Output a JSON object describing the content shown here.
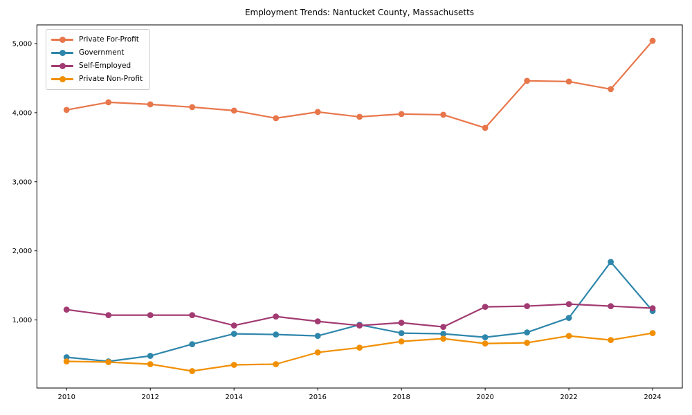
{
  "title": "Employment Trends: Nantucket County, Massachusetts",
  "chart_data": {
    "type": "line",
    "title": "Employment Trends: Nantucket County, Massachusetts",
    "xlabel": "",
    "ylabel": "",
    "grid": false,
    "legend_position": "upper-left",
    "x": [
      2010,
      2011,
      2012,
      2013,
      2014,
      2015,
      2016,
      2017,
      2018,
      2019,
      2020,
      2021,
      2022,
      2023,
      2024
    ],
    "series": [
      {
        "name": "Private For-Profit",
        "color": "#E8764B",
        "values": [
          4040,
          4150,
          4120,
          4080,
          4030,
          3920,
          4010,
          3940,
          3980,
          3970,
          3780,
          4460,
          4450,
          4340,
          5040
        ]
      },
      {
        "name": "Government",
        "color": "#2E86AB",
        "values": [
          460,
          400,
          480,
          650,
          800,
          790,
          770,
          930,
          810,
          800,
          750,
          820,
          1030,
          1840,
          1130
        ]
      },
      {
        "name": "Self-Employed",
        "color": "#A23B72",
        "values": [
          1150,
          1070,
          1070,
          1070,
          920,
          1050,
          980,
          920,
          960,
          900,
          1190,
          1200,
          1230,
          1200,
          1170
        ]
      },
      {
        "name": "Private Non-Profit",
        "color": "#F18F01",
        "values": [
          400,
          390,
          360,
          260,
          350,
          360,
          530,
          600,
          690,
          730,
          660,
          670,
          770,
          710,
          810
        ]
      }
    ],
    "xticks": [
      2010,
      2012,
      2014,
      2016,
      2018,
      2020,
      2022,
      2024
    ],
    "xtick_labels": [
      "2010",
      "2012",
      "2014",
      "2016",
      "2018",
      "2020",
      "2022",
      "2024"
    ],
    "yticks": [
      1000,
      2000,
      3000,
      4000,
      5000
    ],
    "ytick_labels": [
      "1,000",
      "2,000",
      "3,000",
      "4,000",
      "5,000"
    ],
    "xlim": [
      2009.29,
      2024.71
    ],
    "ylim": [
      15,
      5270
    ]
  }
}
